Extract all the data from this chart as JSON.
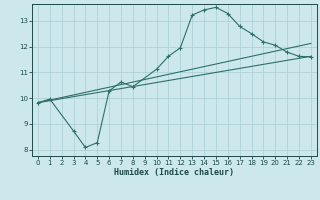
{
  "xlabel": "Humidex (Indice chaleur)",
  "xlim": [
    -0.5,
    23.5
  ],
  "ylim": [
    7.75,
    13.65
  ],
  "xticks": [
    0,
    1,
    2,
    3,
    4,
    5,
    6,
    7,
    8,
    9,
    10,
    11,
    12,
    13,
    14,
    15,
    16,
    17,
    18,
    19,
    20,
    21,
    22,
    23
  ],
  "yticks": [
    8,
    9,
    10,
    11,
    12,
    13
  ],
  "background_color": "#cce8ec",
  "grid_color": "#aacdd2",
  "line_color": "#2e7068",
  "curve_x": [
    0,
    1,
    3,
    4,
    5,
    6,
    7,
    8,
    10,
    11,
    12,
    13,
    14,
    15,
    16,
    17,
    18,
    19,
    20,
    21,
    22,
    23
  ],
  "curve_y": [
    9.82,
    9.96,
    8.72,
    8.08,
    8.27,
    10.28,
    10.62,
    10.44,
    11.12,
    11.62,
    11.95,
    13.22,
    13.42,
    13.52,
    13.28,
    12.78,
    12.5,
    12.18,
    12.05,
    11.78,
    11.62,
    11.6
  ],
  "trend1_x": [
    0,
    23
  ],
  "trend1_y": [
    9.82,
    11.62
  ],
  "trend2_x": [
    0,
    23
  ],
  "trend2_y": [
    9.82,
    12.12
  ]
}
